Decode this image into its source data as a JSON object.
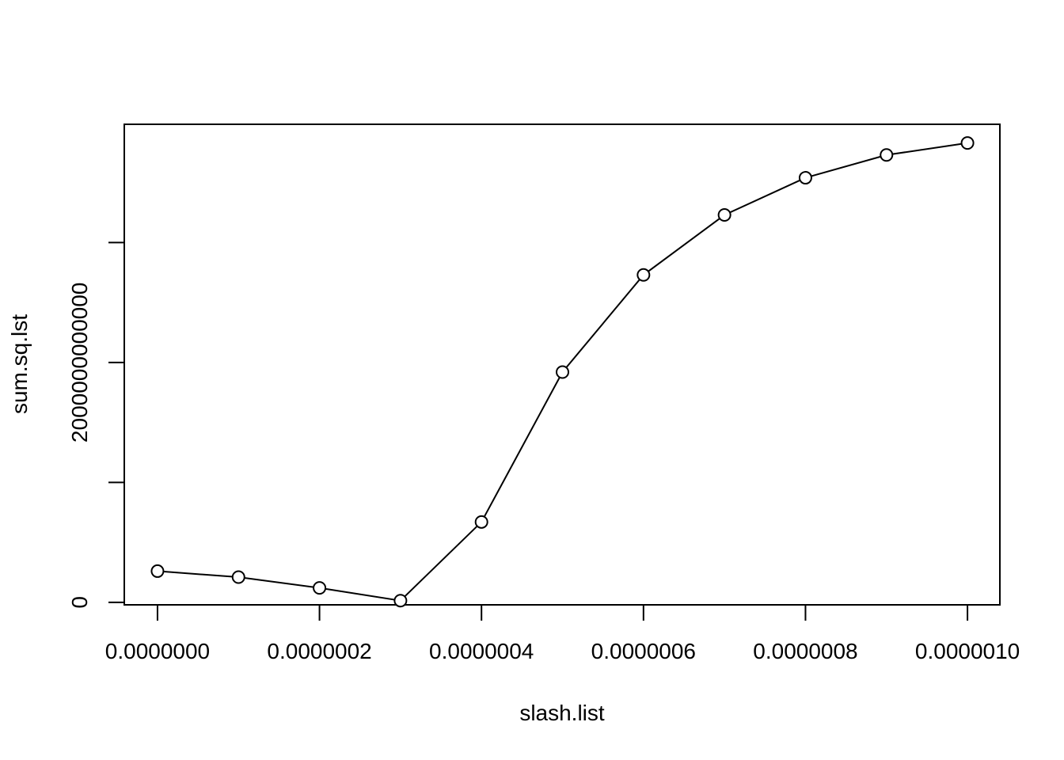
{
  "chart_data": {
    "type": "line",
    "x_label": "slash.list",
    "y_label": "sum.sq.lst",
    "x": [
      0,
      1e-07,
      2e-07,
      3e-07,
      4e-07,
      5e-07,
      6e-07,
      7e-07,
      8e-07,
      9e-07,
      1e-06
    ],
    "values": [
      260000000000,
      210000000000,
      120000000000,
      14000000000,
      670000000000,
      1920000000000,
      2730000000000,
      3230000000000,
      3540000000000,
      3730000000000,
      3830000000000
    ],
    "color": "#000000",
    "markers": true,
    "xlim": [
      -4.1e-08,
      1.04e-06
    ],
    "xticks": [
      {
        "value": 0,
        "label": "0.0000000"
      },
      {
        "value": 2e-07,
        "label": "0.0000002"
      },
      {
        "value": 4e-07,
        "label": "0.0000004"
      },
      {
        "value": 6e-07,
        "label": "0.0000006"
      },
      {
        "value": 8e-07,
        "label": "0.0000008"
      },
      {
        "value": 1e-06,
        "label": "0.0000010"
      }
    ],
    "ylim": [
      -21000000000,
      3986000000000
    ],
    "yticks": [
      0,
      {
        "value": 1000000000000,
        "label": null
      },
      2000000000000,
      {
        "value": 3000000000000,
        "label": null
      }
    ],
    "grid": false
  }
}
